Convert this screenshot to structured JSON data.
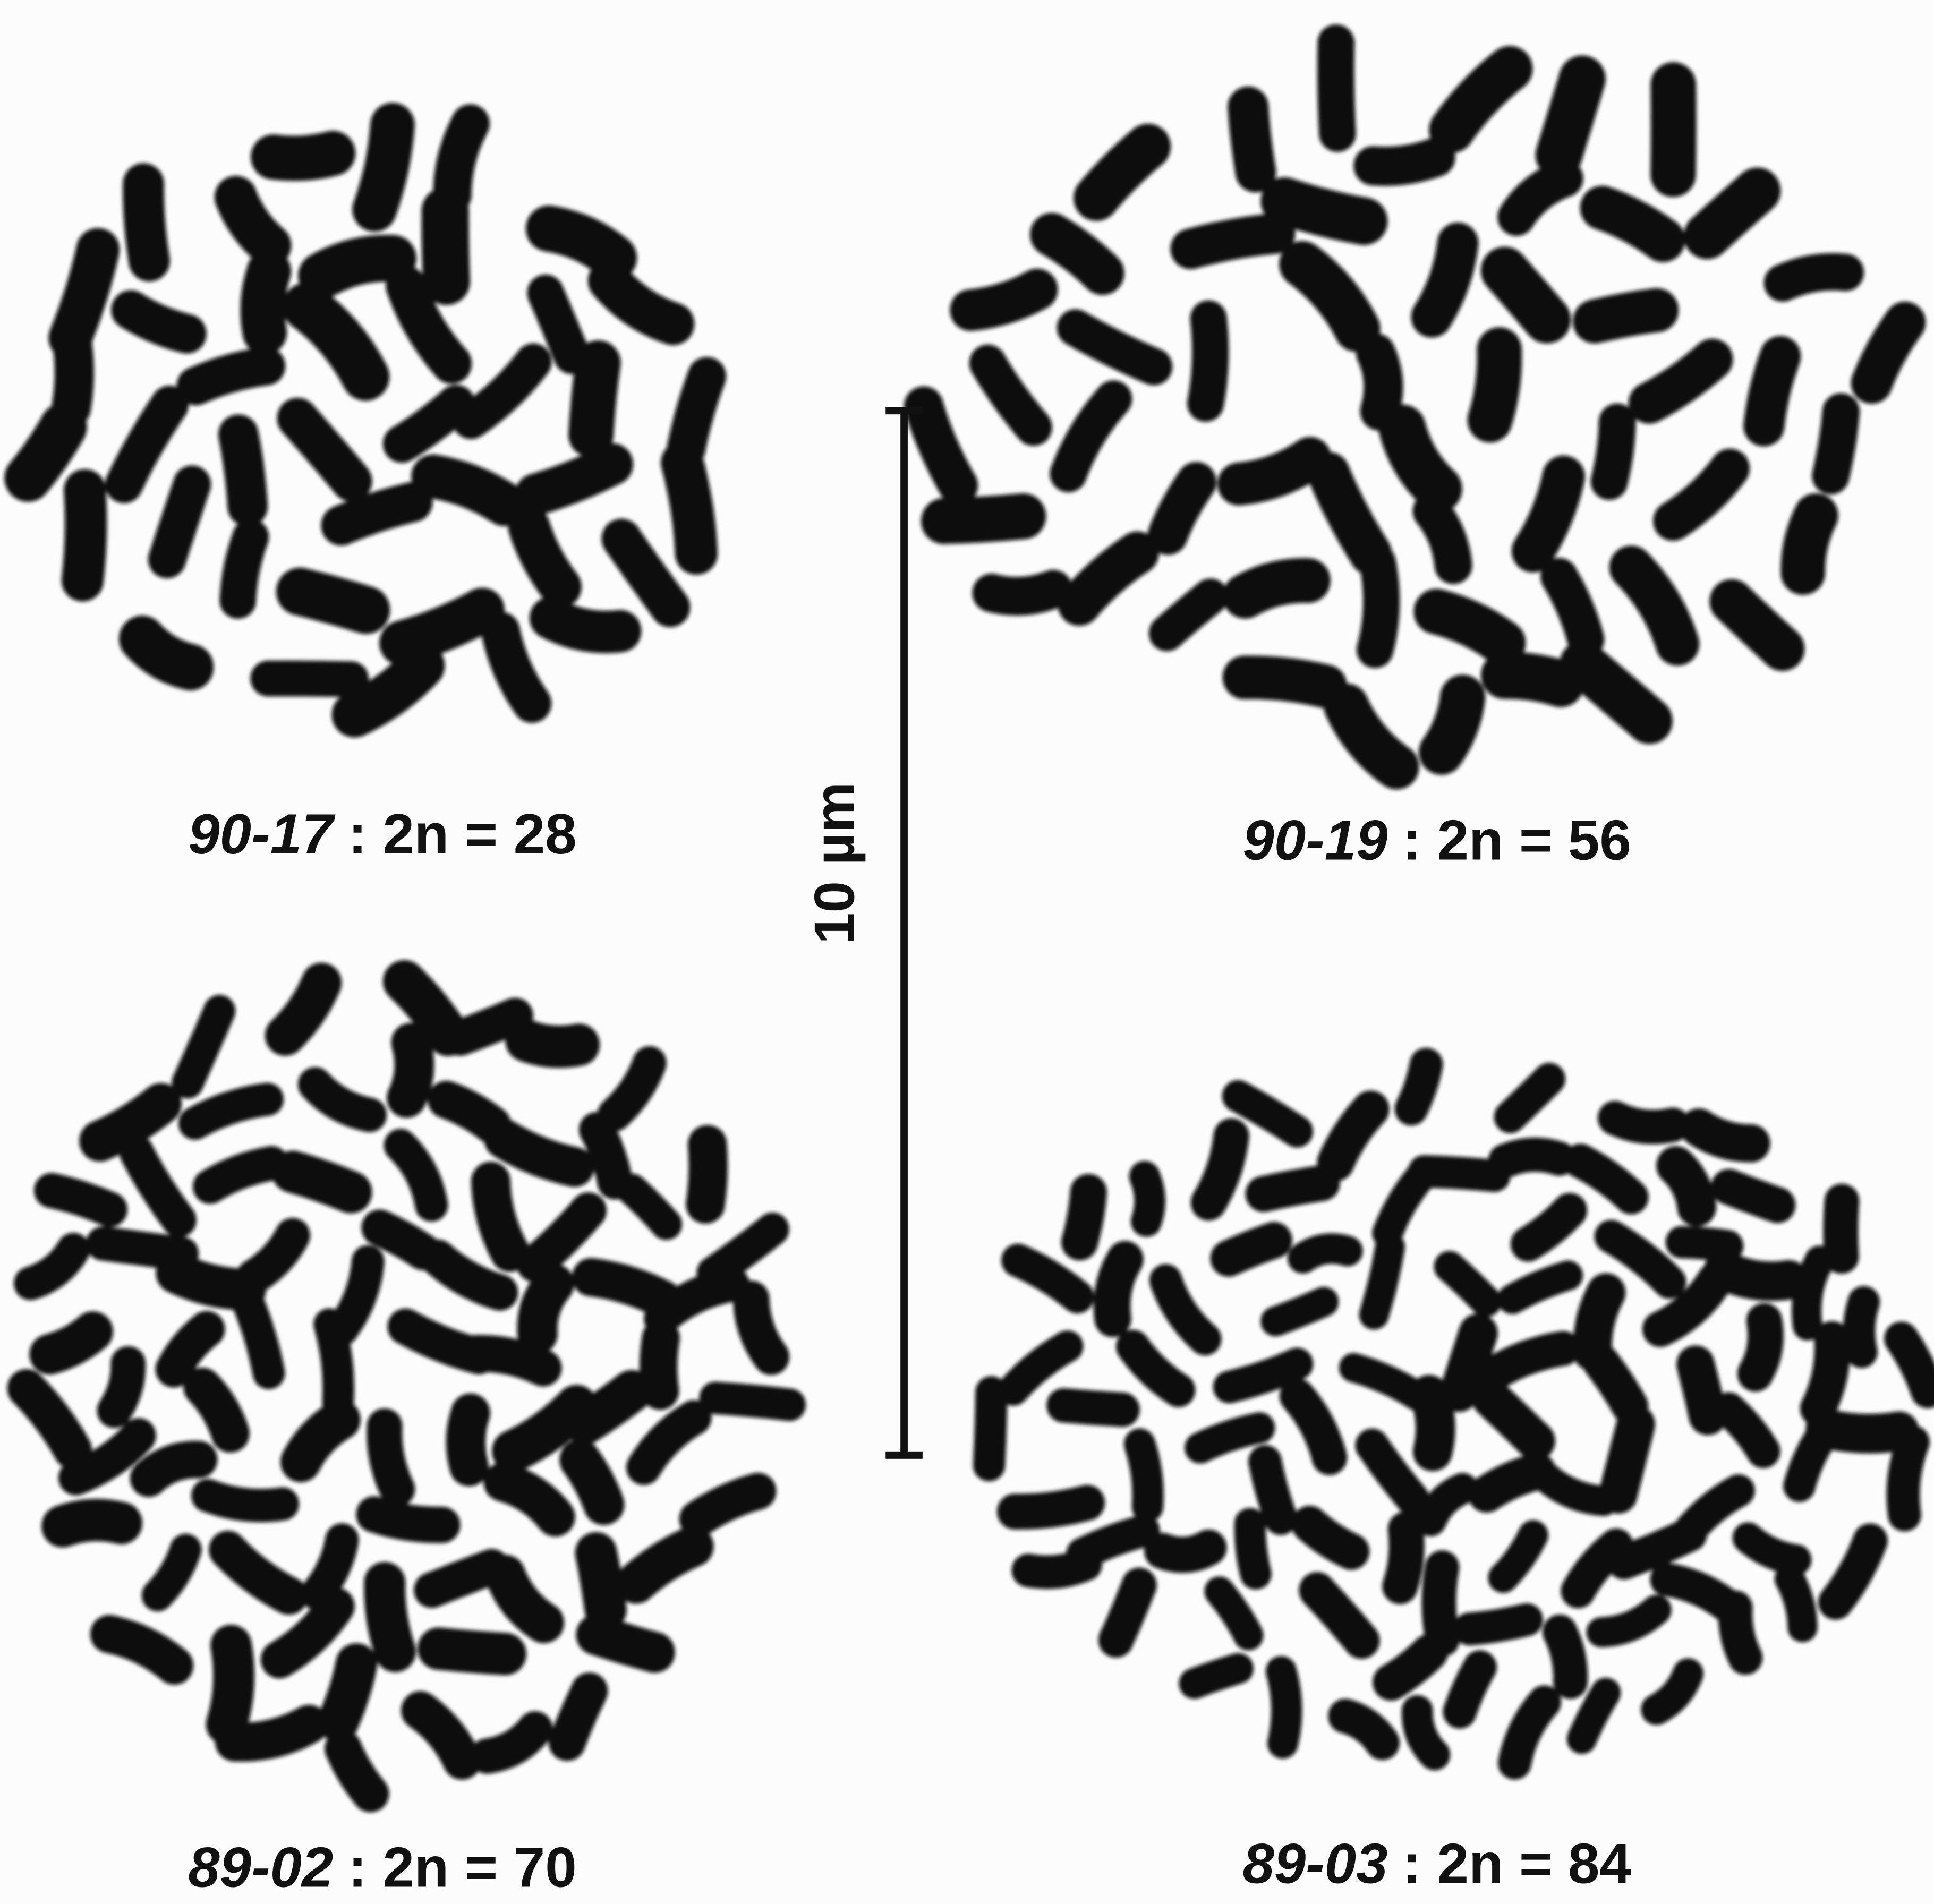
{
  "panels": [
    {
      "id": "90-17",
      "caption": ": 2n = 28"
    },
    {
      "id": "90-19",
      "caption": ": 2n = 56"
    },
    {
      "id": "89-02",
      "caption": ": 2n = 70"
    },
    {
      "id": "89-03",
      "caption": ": 2n = 84"
    }
  ],
  "scale_bar": {
    "label": "10 µm"
  }
}
